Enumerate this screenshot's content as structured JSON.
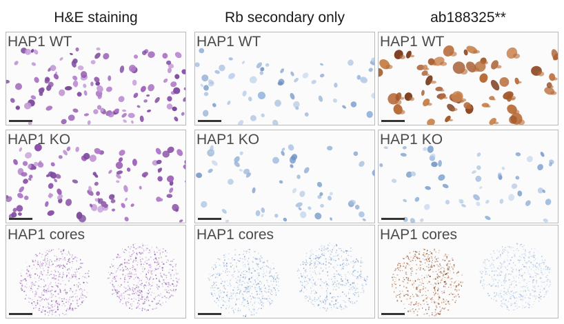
{
  "columns": [
    {
      "title": "H&E staining",
      "rows": [
        {
          "label": "HAP1 WT",
          "stain": "he",
          "kind": "cells",
          "density": "high",
          "seed": 11
        },
        {
          "label": "HAP1 KO",
          "stain": "he",
          "kind": "cells",
          "density": "high",
          "seed": 23
        },
        {
          "label": "HAP1 cores",
          "stain": "he",
          "kind": "cores",
          "seed": 37
        }
      ]
    },
    {
      "title": "Rb secondary only",
      "rows": [
        {
          "label": "HAP1 WT",
          "stain": "hema",
          "kind": "cells",
          "density": "low",
          "seed": 41
        },
        {
          "label": "HAP1 KO",
          "stain": "hema",
          "kind": "cells",
          "density": "low",
          "seed": 53
        },
        {
          "label": "HAP1 cores",
          "stain": "hema",
          "kind": "cores",
          "seed": 67
        }
      ]
    },
    {
      "title": "ab188325**",
      "rows": [
        {
          "label": "HAP1 WT",
          "stain": "dab",
          "kind": "cells",
          "density": "medium",
          "seed": 71
        },
        {
          "label": "HAP1 KO",
          "stain": "hema",
          "kind": "cells",
          "density": "low",
          "seed": 83
        },
        {
          "label": "HAP1 cores",
          "stain": "dab_core",
          "kind": "cores",
          "seed": 97
        }
      ]
    }
  ],
  "colors": {
    "he": "#9b5fb8",
    "hema": "#8fb0d8",
    "dab": "#a3592b",
    "background": "#fbfbfb"
  }
}
